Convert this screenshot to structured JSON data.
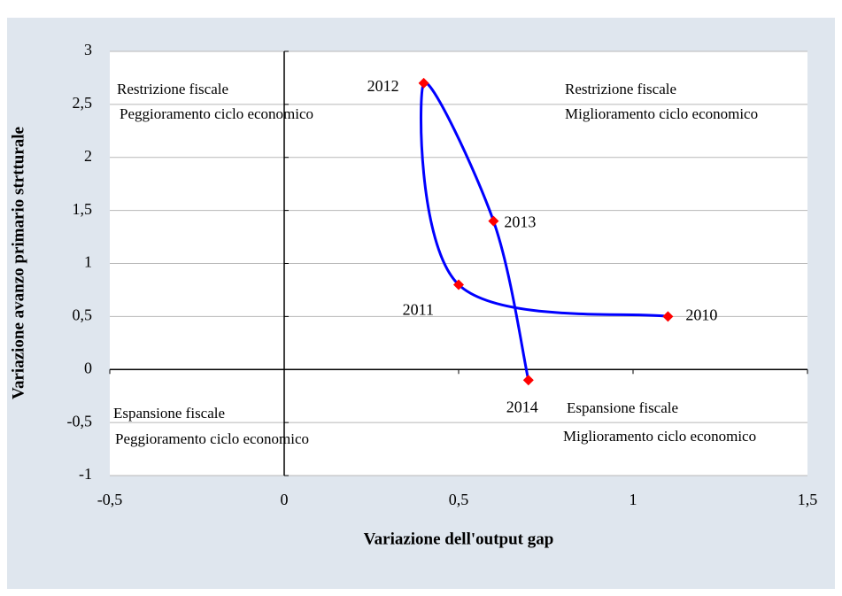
{
  "chart_data": {
    "type": "scatter-line",
    "x_label": "Variazione dell'output gap",
    "y_label": "Variazione avanzo primario strtturale",
    "x": [
      1.1,
      0.5,
      0.4,
      0.6,
      0.7
    ],
    "series": [
      {
        "color": "#0000ff",
        "marker_color": "#ff0000",
        "values": [
          0.5,
          0.8,
          2.7,
          1.4,
          -0.1
        ],
        "point_labels": [
          "2010",
          "2011",
          "2012",
          "2013",
          "2014"
        ]
      }
    ],
    "xlim": [
      -0.5,
      1.5
    ],
    "xticks": [
      {
        "value": -0.5,
        "label": "-0,5"
      },
      0,
      {
        "value": 0.5,
        "label": "0,5"
      },
      1,
      {
        "value": 1.5,
        "label": "1,5"
      }
    ],
    "ylim": [
      -1,
      3
    ],
    "yticks": [
      -1,
      {
        "value": -0.5,
        "label": "-0,5"
      },
      0,
      {
        "value": 0.5,
        "label": "0,5"
      },
      1,
      {
        "value": 1.5,
        "label": "1,5"
      },
      2,
      {
        "value": 2.5,
        "label": "2,5"
      },
      3
    ],
    "grid": true,
    "annotations": [
      "Restrizione fiscale",
      "Peggioramento ciclo economico",
      "Restrizione fiscale",
      "Miglioramento ciclo economico",
      "Espansione fiscale",
      "Peggioramento ciclo economico",
      "Espansione fiscale",
      "Miglioramento ciclo economico"
    ]
  }
}
